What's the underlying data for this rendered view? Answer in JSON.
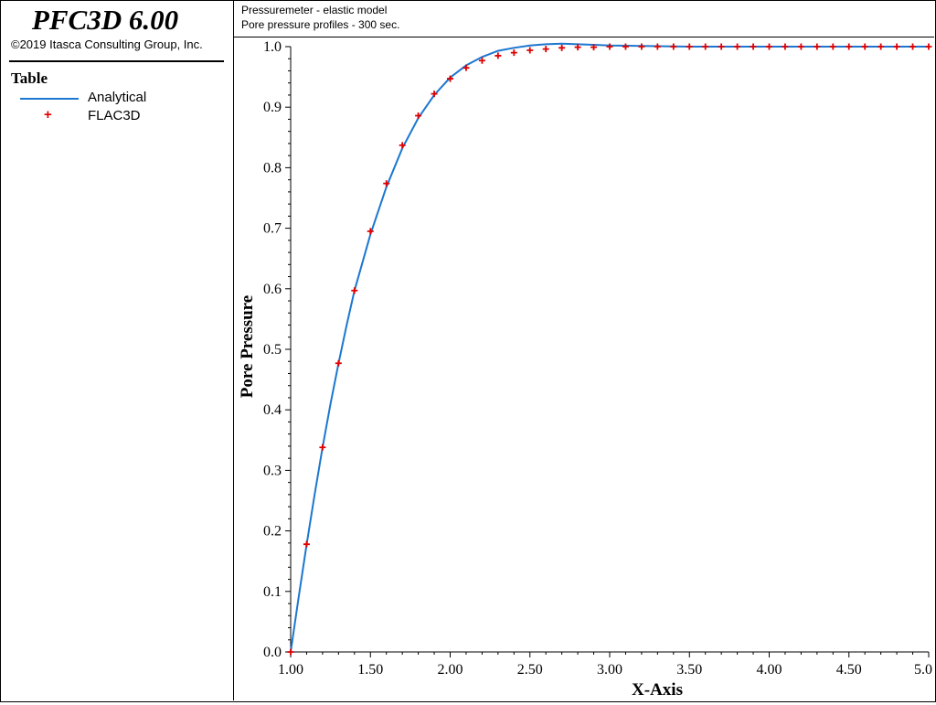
{
  "brand": {
    "title": "PFC3D 6.00",
    "copyright": "©2019 Itasca Consulting Group, Inc."
  },
  "legend": {
    "title": "Table",
    "items": [
      {
        "label": "Analytical",
        "style": "line",
        "color": "#1c77d0"
      },
      {
        "label": "FLAC3D",
        "style": "plus",
        "color": "#e00000"
      }
    ]
  },
  "header": {
    "line1": "Pressuremeter - elastic model",
    "line2": "Pore pressure profiles - 300 sec."
  },
  "chart_data": {
    "type": "line",
    "xlabel": "X-Axis",
    "ylabel": "Pore Pressure",
    "xlim": [
      1.0,
      5.0
    ],
    "ylim": [
      0.0,
      1.0
    ],
    "xticks": [
      1.0,
      1.5,
      2.0,
      2.5,
      3.0,
      3.5,
      4.0,
      4.5,
      5.0
    ],
    "xtick_labels": [
      "1.00",
      "1.50",
      "2.00",
      "2.50",
      "3.00",
      "3.50",
      "4.00",
      "4.50",
      "5.0"
    ],
    "yticks": [
      0.0,
      0.1,
      0.2,
      0.3,
      0.4,
      0.5,
      0.6,
      0.7,
      0.8,
      0.9,
      1.0
    ],
    "ytick_labels": [
      "0.0",
      "0.1",
      "0.2",
      "0.3",
      "0.4",
      "0.5",
      "0.6",
      "0.7",
      "0.8",
      "0.9",
      "1.0"
    ],
    "grid": false,
    "series": [
      {
        "name": "Analytical",
        "type": "line",
        "color": "#1c77d0",
        "x": [
          1.0,
          1.05,
          1.1,
          1.15,
          1.2,
          1.25,
          1.3,
          1.35,
          1.4,
          1.5,
          1.6,
          1.7,
          1.8,
          1.9,
          2.0,
          2.1,
          2.2,
          2.3,
          2.4,
          2.5,
          2.6,
          2.7,
          2.8,
          2.9,
          3.0,
          3.2,
          3.5,
          4.0,
          4.5,
          5.0
        ],
        "y": [
          0.0,
          0.09,
          0.178,
          0.26,
          0.338,
          0.41,
          0.477,
          0.539,
          0.597,
          0.69,
          0.768,
          0.832,
          0.882,
          0.92,
          0.949,
          0.969,
          0.983,
          0.993,
          0.998,
          1.002,
          1.004,
          1.005,
          1.004,
          1.003,
          1.002,
          1.001,
          1.0,
          1.0,
          1.0,
          1.0
        ]
      },
      {
        "name": "FLAC3D",
        "type": "scatter",
        "marker": "plus",
        "color": "#e00000",
        "x": [
          1.0,
          1.1,
          1.2,
          1.3,
          1.4,
          1.5,
          1.6,
          1.7,
          1.8,
          1.9,
          2.0,
          2.1,
          2.2,
          2.3,
          2.4,
          2.5,
          2.6,
          2.7,
          2.8,
          2.9,
          3.0,
          3.1,
          3.2,
          3.3,
          3.4,
          3.5,
          3.6,
          3.7,
          3.8,
          3.9,
          4.0,
          4.1,
          4.2,
          4.3,
          4.4,
          4.5,
          4.6,
          4.7,
          4.8,
          4.9,
          5.0
        ],
        "y": [
          0.0,
          0.178,
          0.338,
          0.477,
          0.597,
          0.695,
          0.774,
          0.837,
          0.886,
          0.922,
          0.947,
          0.965,
          0.977,
          0.985,
          0.99,
          0.994,
          0.996,
          0.998,
          0.999,
          0.999,
          1.0,
          1.0,
          1.0,
          1.0,
          1.0,
          1.0,
          1.0,
          1.0,
          1.0,
          1.0,
          1.0,
          1.0,
          1.0,
          1.0,
          1.0,
          1.0,
          1.0,
          1.0,
          1.0,
          1.0,
          1.0
        ]
      }
    ]
  }
}
